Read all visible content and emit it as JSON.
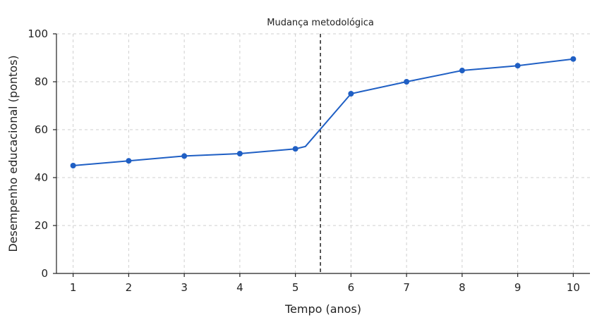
{
  "chart_data": {
    "type": "line",
    "xlabel": "Tempo (anos)",
    "ylabel": "Desempenho educacional (pontos)",
    "xlim": [
      0.7,
      10.3
    ],
    "ylim": [
      0,
      100
    ],
    "x_ticks": [
      1,
      2,
      3,
      4,
      5,
      6,
      7,
      8,
      9,
      10
    ],
    "y_ticks": [
      0,
      20,
      40,
      60,
      80,
      100
    ],
    "grid": true,
    "series": [
      {
        "color": "#1f5fc4",
        "markers": [
          {
            "x": 1,
            "y": 45
          },
          {
            "x": 2,
            "y": 47
          },
          {
            "x": 3,
            "y": 49
          },
          {
            "x": 4,
            "y": 50
          },
          {
            "x": 5,
            "y": 52
          },
          {
            "x": 6,
            "y": 75
          },
          {
            "x": 7,
            "y": 80
          },
          {
            "x": 8,
            "y": 84.7
          },
          {
            "x": 9,
            "y": 86.7
          },
          {
            "x": 10,
            "y": 89.5
          }
        ],
        "line": [
          {
            "x": 1,
            "y": 45
          },
          {
            "x": 2,
            "y": 47
          },
          {
            "x": 3,
            "y": 49
          },
          {
            "x": 4,
            "y": 50
          },
          {
            "x": 5,
            "y": 52
          },
          {
            "x": 5.18,
            "y": 53
          },
          {
            "x": 6,
            "y": 75
          },
          {
            "x": 7,
            "y": 80
          },
          {
            "x": 8,
            "y": 84.7
          },
          {
            "x": 9,
            "y": 86.7
          },
          {
            "x": 10,
            "y": 89.5
          }
        ]
      }
    ],
    "annotations": [
      {
        "type": "vline",
        "x": 5.45,
        "label": "Mudança metodológica",
        "style": "dashed",
        "color": "#222222"
      }
    ]
  }
}
